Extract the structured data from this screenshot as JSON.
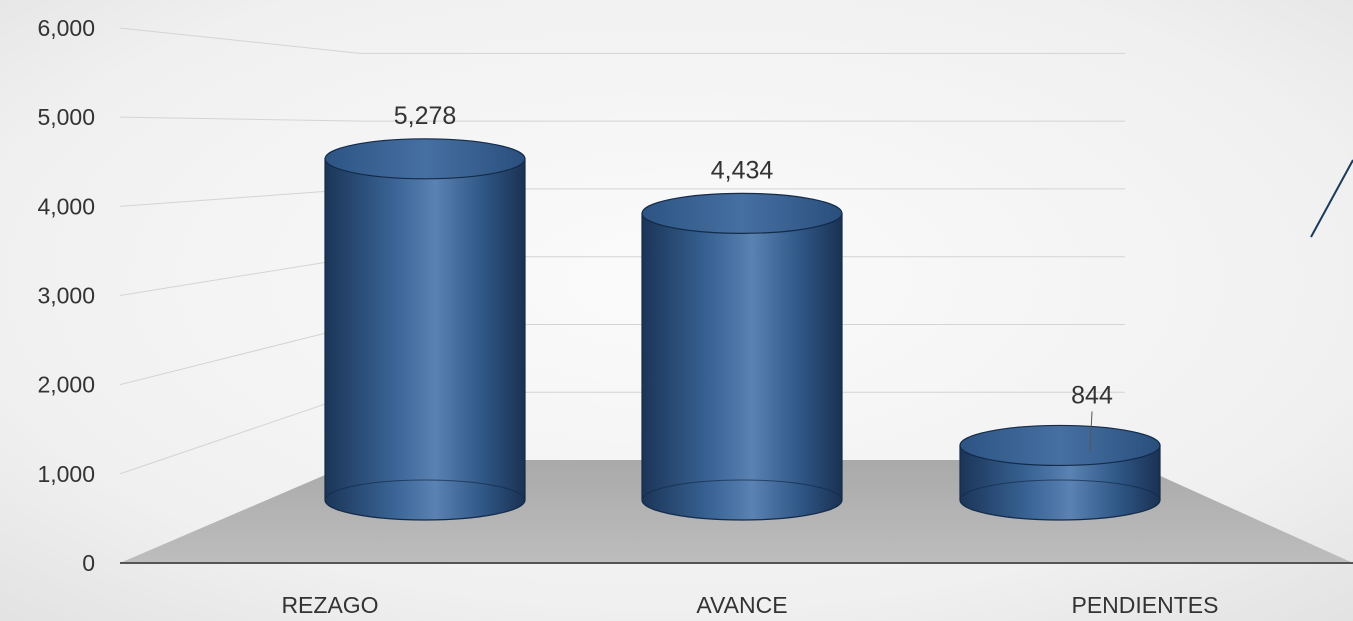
{
  "chart_data": {
    "type": "bar",
    "title": "",
    "xlabel": "",
    "ylabel": "",
    "categories": [
      "REZAGO",
      "AVANCE",
      "PENDIENTES"
    ],
    "values": [
      5278,
      4434,
      844
    ],
    "data_labels": [
      "5,278",
      "4,434",
      "844"
    ],
    "ylim": [
      0,
      6000
    ],
    "yticks": [
      0,
      1000,
      2000,
      3000,
      4000,
      5000,
      6000
    ],
    "ytick_labels": [
      "0",
      "1,000",
      "2,000",
      "3,000",
      "4,000",
      "5,000",
      "6,000"
    ],
    "grid": true,
    "legend": "none",
    "style": "3d-cylinder",
    "colors": {
      "bar": "#2e5584",
      "bar_light": "#4f77a8",
      "bar_dark": "#1b3558",
      "floor": "#b8b8b8",
      "grid": "#d4d4d4",
      "axis": "#555555",
      "text": "#333333",
      "accent_line": "#1b3a5c"
    }
  }
}
